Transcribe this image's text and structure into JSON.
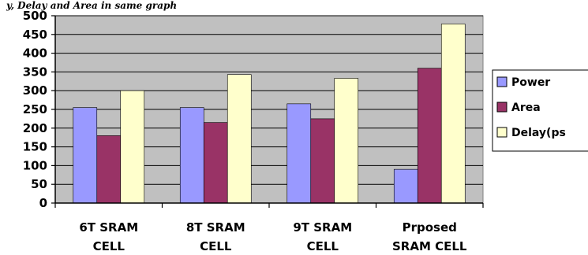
{
  "top_caption": "y, Delay and Area in same graph",
  "colors": {
    "plot_background": "#c0c0c0",
    "gridline": "#000000",
    "power": "#9999ff",
    "area": "#993366",
    "delay": "#ffffcc"
  },
  "chart_data": {
    "type": "bar",
    "title": "",
    "xlabel": "",
    "ylabel": "",
    "ylim": [
      0,
      500
    ],
    "yticks": [
      0,
      50,
      100,
      150,
      200,
      250,
      300,
      350,
      400,
      450,
      500
    ],
    "ytick_labels": [
      "0",
      "50",
      "100",
      "150",
      "200",
      "250",
      "300",
      "350",
      "400",
      "450",
      "500"
    ],
    "grid": true,
    "legend_position": "right",
    "categories": [
      [
        "6T SRAM",
        "CELL"
      ],
      [
        "8T SRAM",
        "CELL"
      ],
      [
        "9T SRAM",
        "CELL"
      ],
      [
        "Prposed",
        "SRAM CELL"
      ]
    ],
    "series": [
      {
        "name": "Power",
        "color": "#9999ff",
        "values": [
          255,
          255,
          265,
          90
        ]
      },
      {
        "name": "Area",
        "color": "#993366",
        "values": [
          180,
          215,
          225,
          360
        ]
      },
      {
        "name": "Delay(ps",
        "color": "#ffffcc",
        "values": [
          300,
          343,
          333,
          478
        ]
      }
    ]
  }
}
